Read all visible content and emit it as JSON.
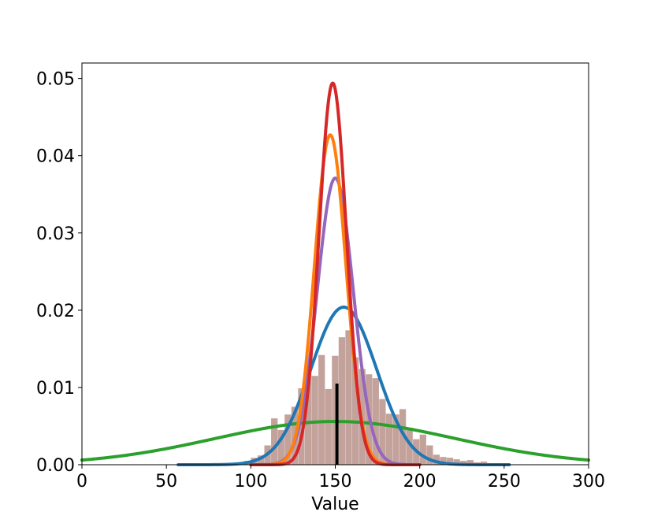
{
  "chart_data": {
    "type": "line",
    "title": "",
    "xlabel": "Value",
    "ylabel": "",
    "xlim": [
      0,
      300
    ],
    "ylim": [
      0,
      0.052
    ],
    "x_ticks": [
      "0",
      "50",
      "100",
      "150",
      "200",
      "250",
      "300"
    ],
    "y_ticks": [
      "0.00",
      "0.01",
      "0.02",
      "0.03",
      "0.04",
      "0.05"
    ],
    "grid": false,
    "legend": "none",
    "histogram": {
      "color": "#c4a29c",
      "bin_width": 4,
      "bins": [
        [
          92,
          0.0003
        ],
        [
          96,
          0.0005
        ],
        [
          100,
          0.0009
        ],
        [
          104,
          0.0012
        ],
        [
          108,
          0.0025
        ],
        [
          112,
          0.006
        ],
        [
          116,
          0.0045
        ],
        [
          120,
          0.0065
        ],
        [
          124,
          0.0075
        ],
        [
          128,
          0.0099
        ],
        [
          132,
          0.0122
        ],
        [
          136,
          0.0115
        ],
        [
          140,
          0.0142
        ],
        [
          144,
          0.0098
        ],
        [
          148,
          0.0141
        ],
        [
          152,
          0.0165
        ],
        [
          156,
          0.0174
        ],
        [
          160,
          0.0139
        ],
        [
          164,
          0.0124
        ],
        [
          168,
          0.0117
        ],
        [
          172,
          0.0112
        ],
        [
          176,
          0.0085
        ],
        [
          180,
          0.0066
        ],
        [
          184,
          0.0065
        ],
        [
          188,
          0.0072
        ],
        [
          192,
          0.0048
        ],
        [
          196,
          0.0033
        ],
        [
          200,
          0.0039
        ],
        [
          204,
          0.0025
        ],
        [
          208,
          0.0013
        ],
        [
          212,
          0.001
        ],
        [
          216,
          0.0009
        ],
        [
          220,
          0.0007
        ],
        [
          224,
          0.0005
        ],
        [
          228,
          0.0006
        ],
        [
          232,
          0.0003
        ],
        [
          236,
          0.0004
        ],
        [
          240,
          0.0002
        ]
      ]
    },
    "series": [
      {
        "color": "#2ca02c",
        "dist": "normal",
        "mean": 150,
        "peak": 0.0056,
        "sd": 71,
        "x_range": [
          0,
          300
        ]
      },
      {
        "color": "#1f77b4",
        "dist": "normal",
        "mean": 155,
        "peak": 0.0204,
        "sd": 19.5,
        "x_range": [
          57,
          253
        ]
      },
      {
        "color": "#9467bd",
        "dist": "normal",
        "mean": 150,
        "peak": 0.0371,
        "sd": 10.7,
        "x_range": [
          100,
          200
        ]
      },
      {
        "color": "#ff7f0e",
        "dist": "normal",
        "mean": 147,
        "peak": 0.0427,
        "sd": 9.3,
        "x_range": [
          100,
          200
        ]
      },
      {
        "color": "#d62728",
        "dist": "normal",
        "mean": 148.5,
        "peak": 0.0494,
        "sd": 8.1,
        "x_range": [
          100,
          200
        ]
      }
    ],
    "marker_line": {
      "color": "#000000",
      "x": 151,
      "y_top": 0.0105
    }
  }
}
